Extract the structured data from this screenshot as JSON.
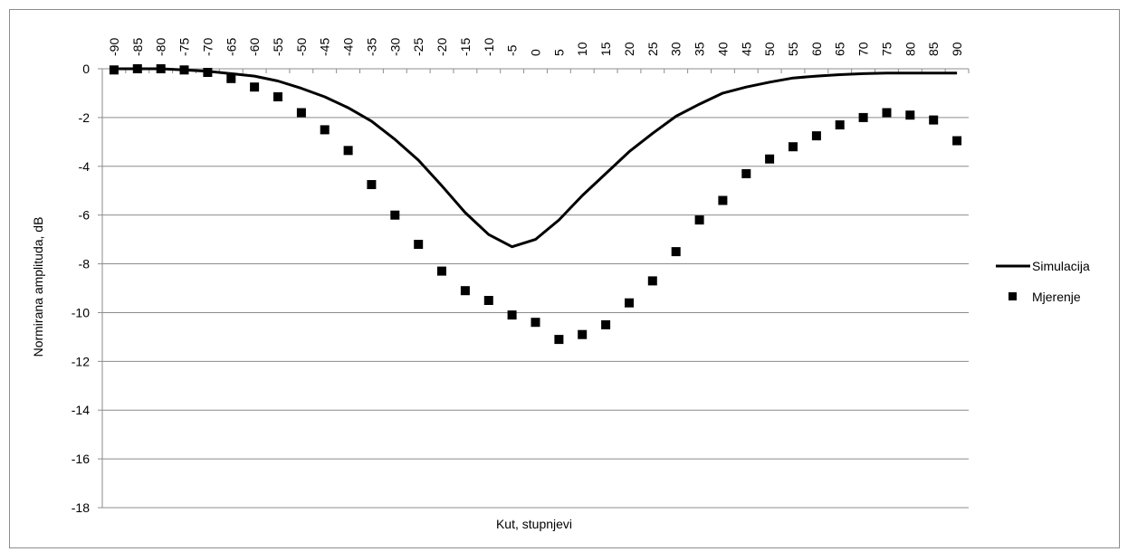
{
  "chart_data": {
    "type": "line",
    "x": [
      -90,
      -85,
      -80,
      -75,
      -70,
      -65,
      -60,
      -55,
      -50,
      -45,
      -40,
      -35,
      -30,
      -25,
      -20,
      -15,
      -10,
      -5,
      0,
      5,
      10,
      15,
      20,
      25,
      30,
      35,
      40,
      45,
      50,
      55,
      60,
      65,
      70,
      75,
      80,
      85,
      90
    ],
    "x_tick_labels": [
      "-90",
      "-85",
      "-80",
      "-75",
      "-70",
      "-65",
      "-60",
      "-55",
      "-50",
      "-45",
      "-40",
      "-35",
      "-30",
      "-25",
      "-20",
      "-15",
      "-10",
      "-5",
      "0",
      "5",
      "10",
      "15",
      "20",
      "25",
      "30",
      "35",
      "40",
      "45",
      "50",
      "55",
      "60",
      "65",
      "70",
      "75",
      "80",
      "85",
      "90"
    ],
    "xlabel": "Kut, stupnjevi",
    "ylabel": "Normirana amplituda, dB",
    "ylim": [
      -18,
      0
    ],
    "y_ticks": [
      0,
      -2,
      -4,
      -6,
      -8,
      -10,
      -12,
      -14,
      -16,
      -18
    ],
    "grid": "horizontal",
    "legend_position": "right",
    "series": [
      {
        "name": "Simulacija",
        "style": "line",
        "color": "#000000",
        "values": [
          0,
          0,
          0,
          -0.05,
          -0.1,
          -0.2,
          -0.3,
          -0.5,
          -0.8,
          -1.15,
          -1.6,
          -2.15,
          -2.9,
          -3.75,
          -4.8,
          -5.9,
          -6.8,
          -7.3,
          -7.0,
          -6.2,
          -5.2,
          -4.3,
          -3.4,
          -2.65,
          -1.95,
          -1.45,
          -1.0,
          -0.75,
          -0.55,
          -0.38,
          -0.3,
          -0.24,
          -0.2,
          -0.18,
          -0.18,
          -0.18,
          -0.18
        ]
      },
      {
        "name": "Mjerenje",
        "style": "markers",
        "color": "#000000",
        "values": [
          -0.05,
          0,
          0,
          -0.05,
          -0.15,
          -0.4,
          -0.75,
          -1.15,
          -1.8,
          -2.5,
          -3.35,
          -4.75,
          -6.0,
          -7.2,
          -8.3,
          -9.1,
          -9.5,
          -10.1,
          -10.4,
          -11.1,
          -10.9,
          -10.5,
          -9.6,
          -8.7,
          -7.5,
          -6.2,
          -5.4,
          -4.3,
          -3.7,
          -3.2,
          -2.75,
          -2.3,
          -2.0,
          -1.8,
          -1.9,
          -2.1,
          -2.95
        ]
      }
    ]
  }
}
